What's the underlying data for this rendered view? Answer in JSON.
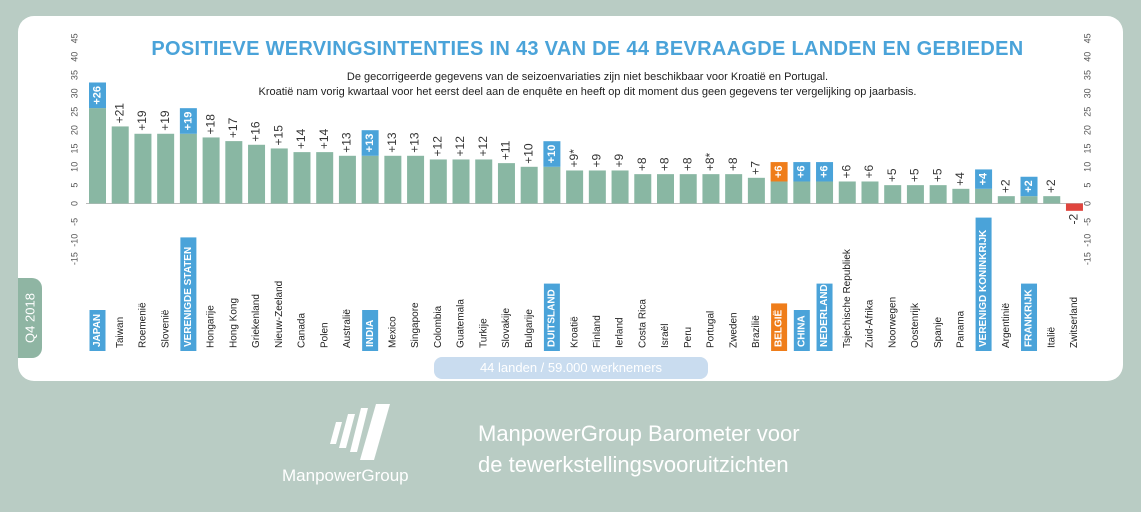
{
  "quarter": "Q4 2018",
  "footer_label": "44 landen / 59.000 werknemers",
  "brand": {
    "logo_text": "ManpowerGroup",
    "tagline_line1": "ManpowerGroup Barometer voor",
    "tagline_line2": "de tewerkstellingsvooruitzichten"
  },
  "chart_data": {
    "type": "bar",
    "title": "POSITIEVE WERVINGSINTENTIES IN 43 VAN DE 44 BEVRAAGDE LANDEN EN GEBIEDEN",
    "subtitle_line1": "De gecorrigeerde gegevens van de seizoenvariaties zijn niet beschikbaar voor Kroatië en Portugal.",
    "subtitle_line2": "Kroatië nam vorig kwartaal voor het eerst deel aan de enquête en heeft op dit moment dus geen gegevens ter vergelijking op jaarbasis.",
    "ylim": [
      -15,
      45
    ],
    "yticks": [
      -15,
      -10,
      -5,
      0,
      5,
      10,
      15,
      20,
      25,
      30,
      35,
      40,
      45
    ],
    "categories": [
      "JAPAN",
      "Taiwan",
      "Roemenië",
      "Slovenië",
      "VERENIGDE STATEN",
      "Hongarije",
      "Hong Kong",
      "Griekenland",
      "Nieuw-Zeeland",
      "Canada",
      "Polen",
      "Australië",
      "INDIA",
      "Mexico",
      "Singapore",
      "Colombia",
      "Guatemala",
      "Turkije",
      "Slovakije",
      "Bulgarije",
      "DUITSLAND",
      "Kroatië",
      "Finland",
      "Ierland",
      "Costa Rica",
      "Israël",
      "Peru",
      "Portugal",
      "Zweden",
      "Brazilië",
      "BELGIË",
      "CHINA",
      "NEDERLAND",
      "Tsjechische Republiek",
      "Zuid-Afrika",
      "Noorwegen",
      "Oostenrijk",
      "Spanje",
      "Panama",
      "VERENIGD KONINKRIJK",
      "Argentinië",
      "FRANKRIJK",
      "Italië",
      "Zwitserland"
    ],
    "values": [
      26,
      21,
      19,
      19,
      19,
      18,
      17,
      16,
      15,
      14,
      14,
      13,
      13,
      13,
      13,
      12,
      12,
      12,
      11,
      10,
      10,
      9,
      9,
      9,
      8,
      8,
      8,
      8,
      8,
      7,
      6,
      6,
      6,
      6,
      6,
      5,
      5,
      5,
      4,
      4,
      2,
      2,
      2,
      -2
    ],
    "value_labels": [
      "+26",
      "+21",
      "+19",
      "+19",
      "+19",
      "+18",
      "+17",
      "+16",
      "+15",
      "+14",
      "+14",
      "+13",
      "+13",
      "+13",
      "+13",
      "+12",
      "+12",
      "+12",
      "+11",
      "+10",
      "+10",
      "+9*",
      "+9",
      "+9",
      "+8",
      "+8",
      "+8",
      "+8*",
      "+8",
      "+7",
      "+6",
      "+6",
      "+6",
      "+6",
      "+6",
      "+5",
      "+5",
      "+5",
      "+4",
      "+4",
      "+2",
      "+2",
      "+2",
      "-2"
    ],
    "highlight_blue": [
      0,
      4,
      12,
      20,
      31,
      32,
      39,
      41
    ],
    "highlight_orange": [
      30
    ],
    "colors": {
      "bar": "#89b7a3",
      "bar_negative": "#e0453e",
      "highlight_blue": "#4aa3d9",
      "highlight_orange": "#ef7d1a",
      "title": "#4aa3d9"
    }
  }
}
